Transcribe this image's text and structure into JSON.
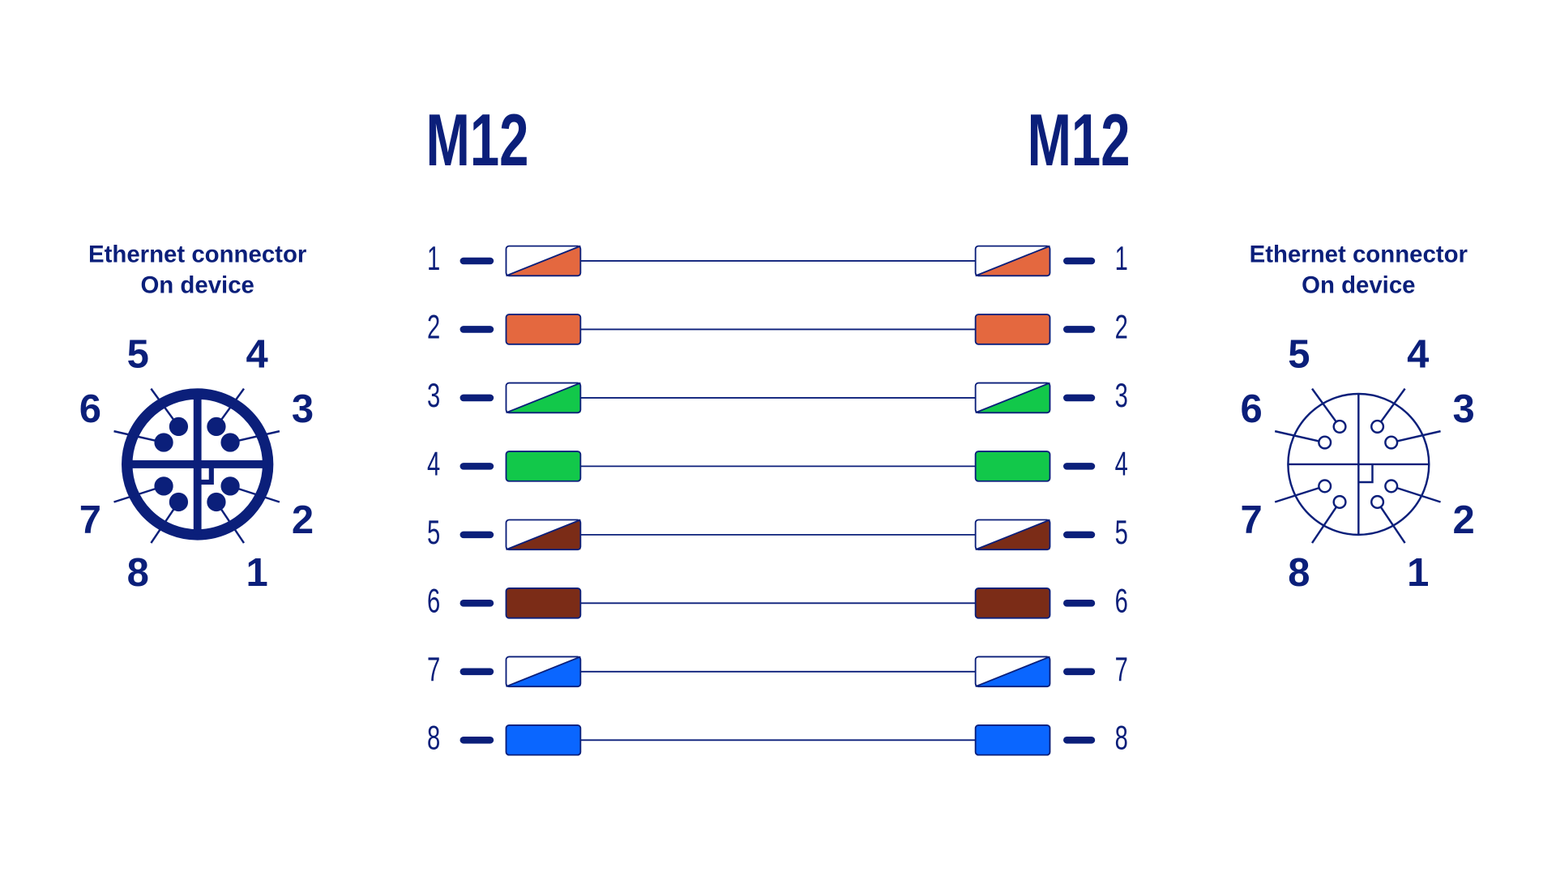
{
  "left_connector": {
    "title": [
      "Ethernet connector",
      "On device"
    ],
    "pins": [
      "1",
      "2",
      "3",
      "4",
      "5",
      "6",
      "7",
      "8"
    ],
    "style": "filled"
  },
  "right_connector": {
    "title": [
      "Ethernet connector",
      "On device"
    ],
    "pins": [
      "1",
      "2",
      "3",
      "4",
      "5",
      "6",
      "7",
      "8"
    ],
    "style": "outline"
  },
  "cable": {
    "left_label": "M12",
    "right_label": "M12",
    "wires": [
      {
        "left_pin": "1",
        "right_pin": "1",
        "color": "#e4683f",
        "striped": true
      },
      {
        "left_pin": "2",
        "right_pin": "2",
        "color": "#e4683f",
        "striped": false
      },
      {
        "left_pin": "3",
        "right_pin": "3",
        "color": "#12c84a",
        "striped": true
      },
      {
        "left_pin": "4",
        "right_pin": "4",
        "color": "#12c84a",
        "striped": false
      },
      {
        "left_pin": "5",
        "right_pin": "5",
        "color": "#7b2c17",
        "striped": true
      },
      {
        "left_pin": "6",
        "right_pin": "6",
        "color": "#7b2c17",
        "striped": false
      },
      {
        "left_pin": "7",
        "right_pin": "7",
        "color": "#0a66ff",
        "striped": true
      },
      {
        "left_pin": "8",
        "right_pin": "8",
        "color": "#0a66ff",
        "striped": false
      }
    ]
  }
}
